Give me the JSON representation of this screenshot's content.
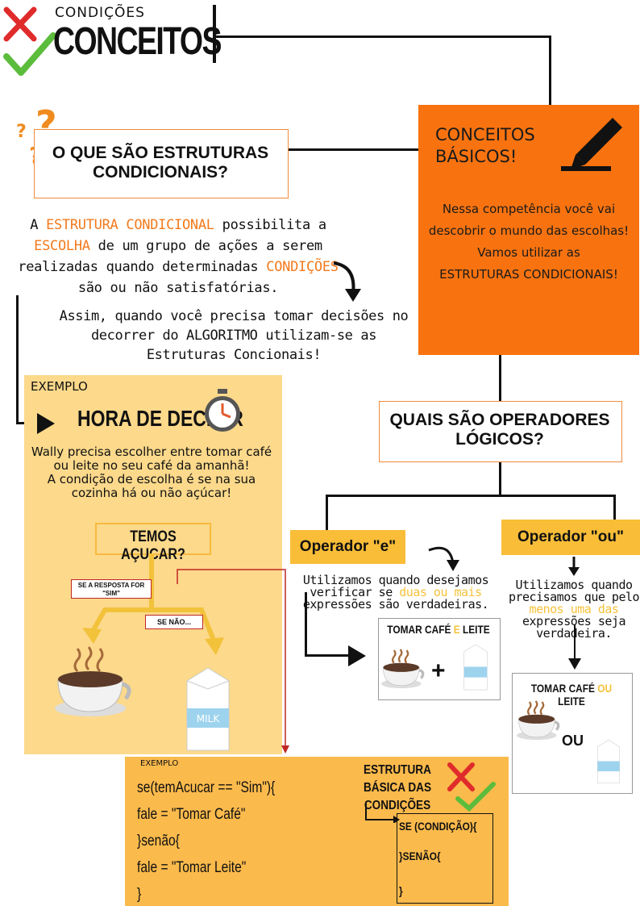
{
  "header": {
    "small_title": "CONDIÇÕES",
    "big_title": "CONCEITOS"
  },
  "question": {
    "title": "O QUE SÃO ESTRUTURAS CONDICIONAIS?"
  },
  "basic": {
    "title": "CONCEITOS BÁSICOS!",
    "body_1": "Nessa competência você vai descobrir o mundo das escolhas! Vamos utilizar as",
    "body_2": "ESTRUTURAS CONDICIONAIS!"
  },
  "intro": {
    "p1": "A",
    "h1": "ESTRUTURA CONDICIONAL",
    "p2": "possibilita a",
    "h2": "ESCOLHA",
    "p3": "de um grupo de ações a serem realizadas quando determinadas",
    "h3": "CONDIÇÕES",
    "p4": "são ou não satisfatórias."
  },
  "assim": "Assim, quando você precisa tomar decisões no decorrer do ALGORITMO utilizam-se as Estruturas Concionais!",
  "example": {
    "label": "EXEMPLO",
    "title": "HORA DE DECIDIR",
    "desc_1": "Wally precisa escolher entre tomar café ou leite no seu café da amanhã!",
    "desc_2": "A condição de escolha é se na sua cozinha há ou não açúcar!",
    "question": "TEMOS AÇUCAR?",
    "if_yes": "SE A RESPOSTA FOR \"SIM\"",
    "if_no": "SE NÃO...",
    "milk_label": "MILK"
  },
  "code": {
    "label": "EXEMPLO",
    "lines": [
      "se(temAcucar == \"Sim\"){",
      "fale = \"Tomar Café\"",
      "}senão{",
      "fale = \"Tomar Leite\"",
      "}"
    ],
    "structure_title": "ESTRUTURA BÁSICA DAS CONDIÇÕES",
    "structure_lines": [
      "SE (CONDIÇÃO){",
      "}SENÃO{",
      "}"
    ]
  },
  "operators": {
    "title": "QUAIS SÃO OPERADORES LÓGICOS?",
    "e": {
      "label": "Operador \"e\"",
      "desc_1": "Utilizamos quando desejamos verificar se",
      "desc_hl": "duas ou mais",
      "desc_2": "expressões são verdadeiras.",
      "card_a": "TOMAR CAFÉ",
      "card_conj": "E",
      "card_b": "LEITE",
      "plus": "+"
    },
    "ou": {
      "label": "Operador \"ou\"",
      "desc_1": "Utilizamos quando precisamos que pelo",
      "desc_hl": "menos uma das",
      "desc_2": "expressões seja verdadeira.",
      "card_a": "TOMAR CAFÉ",
      "card_conj": "OU",
      "card_b": "LEITE",
      "mid": "OU"
    }
  },
  "colors": {
    "orange": "#f87310",
    "yellow": "#f9bd38",
    "panel": "#fcd98b",
    "code_panel": "#fbba4c",
    "red_x": "#e02b2b",
    "green_check": "#5cbc3c"
  }
}
